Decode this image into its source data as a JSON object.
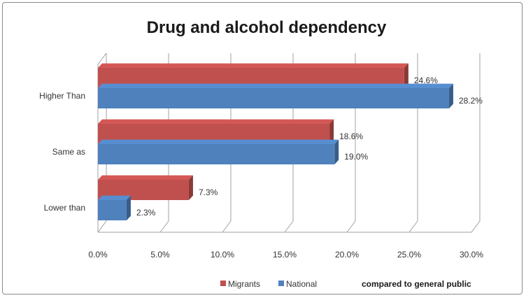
{
  "chart_data": {
    "type": "bar",
    "orientation": "horizontal",
    "three_d": true,
    "title": "Drug and alcohol dependency",
    "categories": [
      "Higher Than",
      "Same as",
      "Lower  than"
    ],
    "series": [
      {
        "name": "Migrants",
        "values": [
          24.6,
          18.6,
          7.3
        ],
        "labels": [
          "24.6%",
          "18.6%",
          "7.3%"
        ],
        "color": "#c0504d"
      },
      {
        "name": "National",
        "values": [
          28.2,
          19.0,
          2.3
        ],
        "labels": [
          "28.2%",
          "19.0%",
          "2.3%"
        ],
        "color": "#4f81bd"
      }
    ],
    "xlim": [
      0,
      30
    ],
    "x_ticks": [
      "0.0%",
      "5.0%",
      "10.0%",
      "15.0%",
      "20.0%",
      "25.0%",
      "30.0%"
    ],
    "grid": true,
    "legend": "bottom",
    "annotation": "compared to general public"
  }
}
